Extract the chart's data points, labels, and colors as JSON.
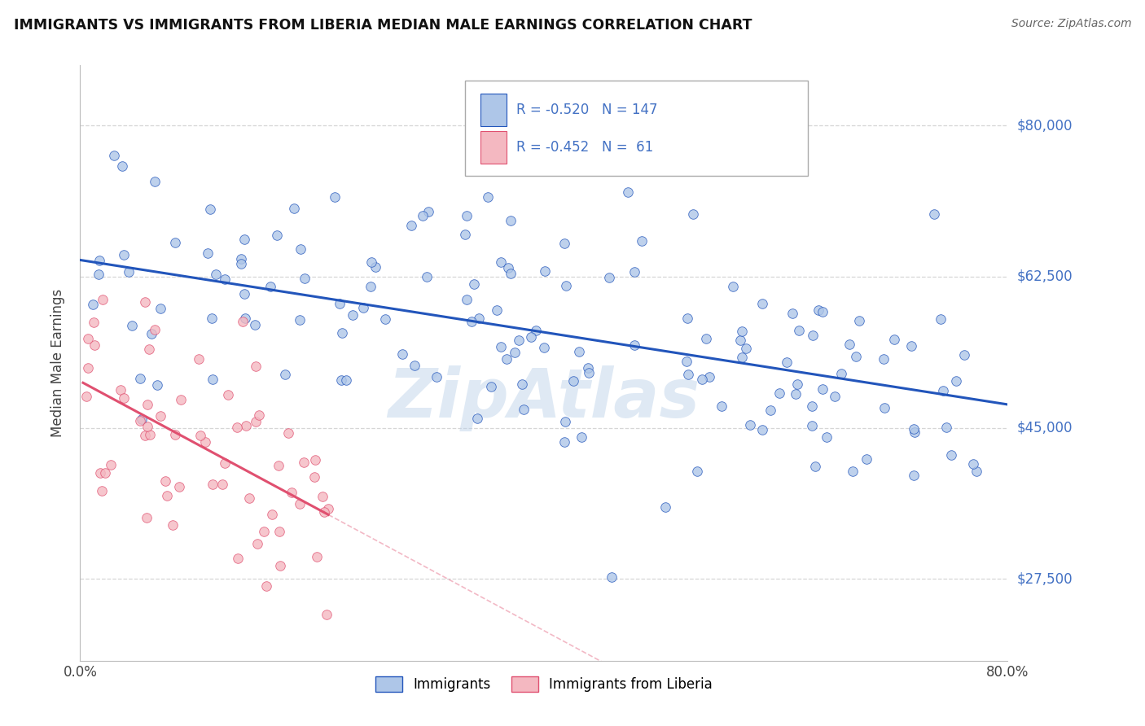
{
  "title": "IMMIGRANTS VS IMMIGRANTS FROM LIBERIA MEDIAN MALE EARNINGS CORRELATION CHART",
  "source": "Source: ZipAtlas.com",
  "ylabel": "Median Male Earnings",
  "watermark": "ZipAtlas",
  "xlim": [
    0.0,
    0.8
  ],
  "yticks": [
    27500,
    45000,
    62500,
    80000
  ],
  "yticklabels": [
    "$27,500",
    "$45,000",
    "$62,500",
    "$80,000"
  ],
  "series1_color": "#aec6e8",
  "series2_color": "#f4b8c1",
  "line1_color": "#2255bb",
  "line2_color": "#e05070",
  "R1": -0.52,
  "N1": 147,
  "R2": -0.452,
  "N2": 61,
  "legend_label1": "Immigrants",
  "legend_label2": "Immigrants from Liberia",
  "title_color": "#111111",
  "axis_color": "#4472c4",
  "grid_color": "#cccccc",
  "background_color": "#ffffff"
}
